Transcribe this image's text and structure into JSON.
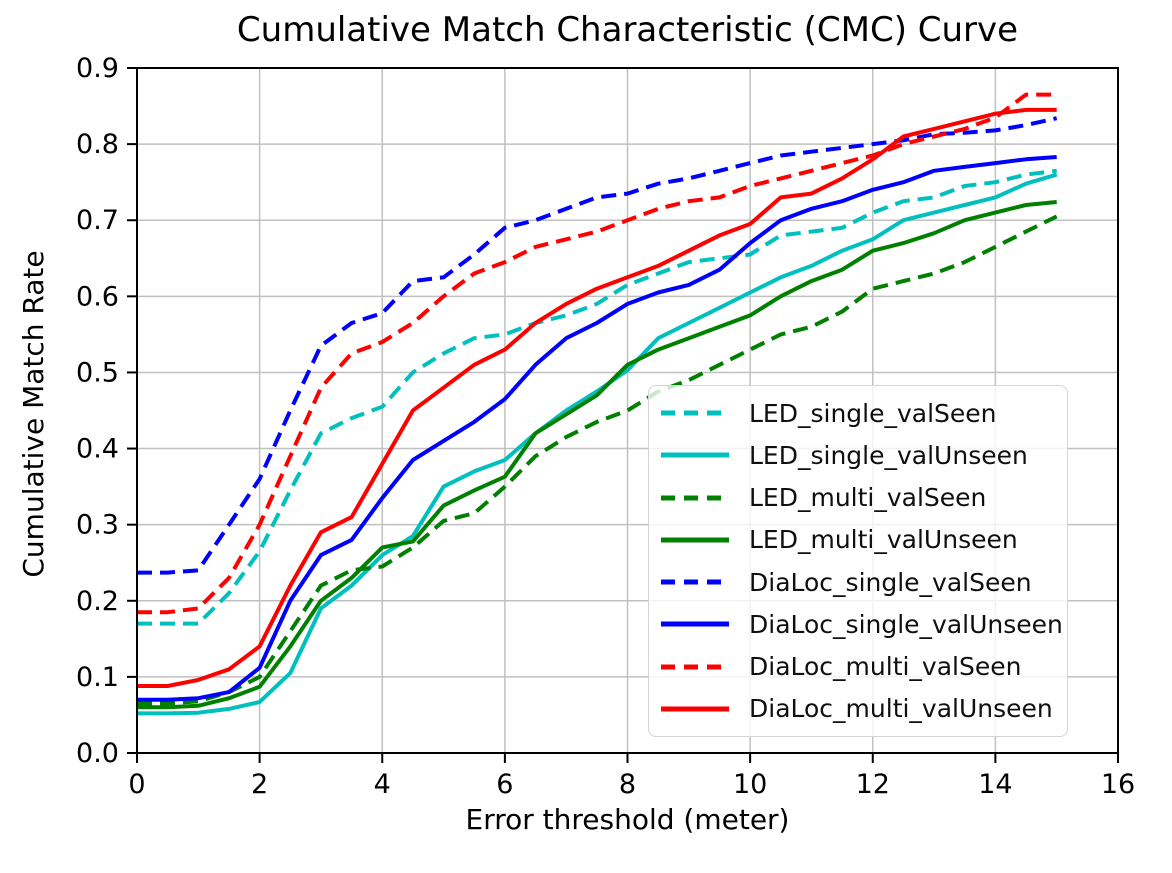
{
  "figure": {
    "title": "Cumulative Match Characteristic (CMC) Curve"
  },
  "chart_data": {
    "type": "line",
    "title": "Cumulative Match Characteristic (CMC) Curve",
    "xlabel": "Error threshold (meter)",
    "ylabel": "Cumulative Match Rate",
    "xlim": [
      0,
      16
    ],
    "ylim": [
      0.0,
      0.9
    ],
    "xticks": [
      0,
      2,
      4,
      6,
      8,
      10,
      12,
      14,
      16
    ],
    "yticks": [
      0.0,
      0.1,
      0.2,
      0.3,
      0.4,
      0.5,
      0.6,
      0.7,
      0.8,
      0.9
    ],
    "grid": true,
    "grid_color": "#c0c0c0",
    "legend_position": "center right",
    "x": [
      0,
      0.5,
      1,
      1.5,
      2,
      2.5,
      3,
      3.5,
      4,
      4.5,
      5,
      5.5,
      6,
      6.5,
      7,
      7.5,
      8,
      8.5,
      9,
      9.5,
      10,
      10.5,
      11,
      11.5,
      12,
      12.5,
      13,
      13.5,
      14,
      14.5,
      15
    ],
    "series": [
      {
        "name": "LED_single_valSeen",
        "color": "#00bfbf",
        "line_style": "dashed",
        "values": [
          0.17,
          0.17,
          0.17,
          0.21,
          0.265,
          0.345,
          0.42,
          0.44,
          0.455,
          0.5,
          0.525,
          0.545,
          0.55,
          0.565,
          0.575,
          0.59,
          0.615,
          0.63,
          0.645,
          0.65,
          0.655,
          0.68,
          0.685,
          0.69,
          0.71,
          0.725,
          0.73,
          0.745,
          0.75,
          0.76,
          0.765
        ]
      },
      {
        "name": "LED_single_valUnseen",
        "color": "#00bfbf",
        "line_style": "solid",
        "values": [
          0.052,
          0.052,
          0.053,
          0.058,
          0.067,
          0.105,
          0.19,
          0.22,
          0.26,
          0.285,
          0.35,
          0.37,
          0.385,
          0.42,
          0.45,
          0.475,
          0.503,
          0.545,
          0.565,
          0.585,
          0.605,
          0.625,
          0.64,
          0.66,
          0.675,
          0.7,
          0.71,
          0.72,
          0.73,
          0.748,
          0.76
        ]
      },
      {
        "name": "LED_multi_valSeen",
        "color": "#008000",
        "line_style": "dashed",
        "values": [
          0.065,
          0.065,
          0.068,
          0.08,
          0.1,
          0.16,
          0.22,
          0.24,
          0.245,
          0.27,
          0.305,
          0.315,
          0.35,
          0.39,
          0.415,
          0.435,
          0.45,
          0.475,
          0.49,
          0.51,
          0.53,
          0.55,
          0.56,
          0.58,
          0.61,
          0.62,
          0.63,
          0.645,
          0.665,
          0.685,
          0.705
        ]
      },
      {
        "name": "LED_multi_valUnseen",
        "color": "#008000",
        "line_style": "solid",
        "values": [
          0.06,
          0.06,
          0.062,
          0.072,
          0.087,
          0.14,
          0.2,
          0.23,
          0.27,
          0.278,
          0.325,
          0.345,
          0.363,
          0.42,
          0.445,
          0.47,
          0.51,
          0.53,
          0.545,
          0.56,
          0.575,
          0.6,
          0.62,
          0.635,
          0.66,
          0.67,
          0.683,
          0.7,
          0.71,
          0.72,
          0.724
        ]
      },
      {
        "name": "DiaLoc_single_valSeen",
        "color": "#0000ff",
        "line_style": "dashed",
        "values": [
          0.237,
          0.237,
          0.24,
          0.3,
          0.36,
          0.45,
          0.535,
          0.565,
          0.578,
          0.62,
          0.625,
          0.655,
          0.69,
          0.7,
          0.715,
          0.73,
          0.735,
          0.748,
          0.755,
          0.765,
          0.775,
          0.785,
          0.79,
          0.795,
          0.8,
          0.805,
          0.813,
          0.815,
          0.818,
          0.825,
          0.834
        ]
      },
      {
        "name": "DiaLoc_single_valUnseen",
        "color": "#0000ff",
        "line_style": "solid",
        "values": [
          0.07,
          0.07,
          0.072,
          0.08,
          0.112,
          0.2,
          0.26,
          0.28,
          0.335,
          0.385,
          0.41,
          0.435,
          0.465,
          0.51,
          0.545,
          0.565,
          0.59,
          0.605,
          0.615,
          0.635,
          0.67,
          0.7,
          0.715,
          0.725,
          0.74,
          0.75,
          0.765,
          0.77,
          0.775,
          0.78,
          0.783
        ]
      },
      {
        "name": "DiaLoc_multi_valSeen",
        "color": "#ff0000",
        "line_style": "dashed",
        "values": [
          0.185,
          0.185,
          0.19,
          0.23,
          0.3,
          0.39,
          0.48,
          0.525,
          0.54,
          0.565,
          0.6,
          0.63,
          0.645,
          0.665,
          0.675,
          0.685,
          0.7,
          0.715,
          0.725,
          0.73,
          0.745,
          0.755,
          0.765,
          0.775,
          0.785,
          0.8,
          0.81,
          0.82,
          0.835,
          0.865,
          0.865
        ]
      },
      {
        "name": "DiaLoc_multi_valUnseen",
        "color": "#ff0000",
        "line_style": "solid",
        "values": [
          0.088,
          0.088,
          0.096,
          0.11,
          0.14,
          0.22,
          0.29,
          0.31,
          0.38,
          0.45,
          0.48,
          0.51,
          0.53,
          0.565,
          0.59,
          0.61,
          0.625,
          0.64,
          0.66,
          0.68,
          0.695,
          0.73,
          0.735,
          0.755,
          0.78,
          0.81,
          0.82,
          0.83,
          0.84,
          0.845,
          0.845
        ]
      }
    ]
  }
}
